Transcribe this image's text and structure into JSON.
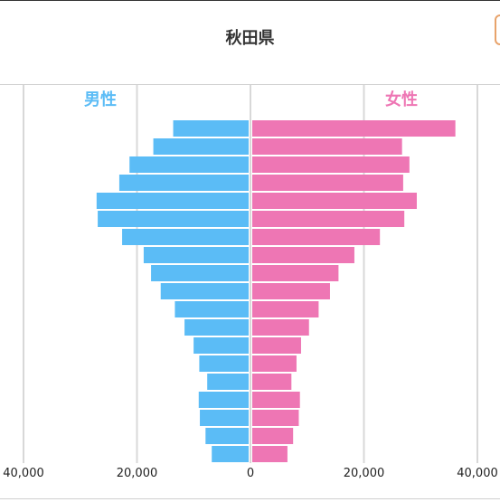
{
  "title": "秋田県",
  "colors": {
    "male": "#5bbcf6",
    "female": "#ee76b4",
    "grid": "#d8d8d8",
    "text": "#222222"
  },
  "chart_data": {
    "type": "bar",
    "orientation": "horizontal-pyramid",
    "title": "秋田県",
    "legend": {
      "male": "男性",
      "female": "女性",
      "placement": "top"
    },
    "x_range": [
      -40000,
      40000
    ],
    "x_ticks": [
      -40000,
      -20000,
      0,
      20000,
      40000
    ],
    "x_tick_labels": [
      "40,000",
      "20,000",
      "0",
      "20,000",
      "40,000"
    ],
    "grid": true,
    "series": [
      {
        "name": "男性",
        "values": [
          13300,
          16800,
          21000,
          22800,
          26800,
          26600,
          22300,
          18500,
          17200,
          15500,
          13000,
          11300,
          9700,
          8700,
          7300,
          8800,
          8600,
          7600,
          6500
        ]
      },
      {
        "name": "女性",
        "values": [
          35800,
          26400,
          27700,
          26600,
          29000,
          26800,
          22500,
          18000,
          15200,
          13700,
          11700,
          10000,
          8600,
          7800,
          6900,
          8400,
          8200,
          7200,
          6200
        ]
      }
    ]
  }
}
